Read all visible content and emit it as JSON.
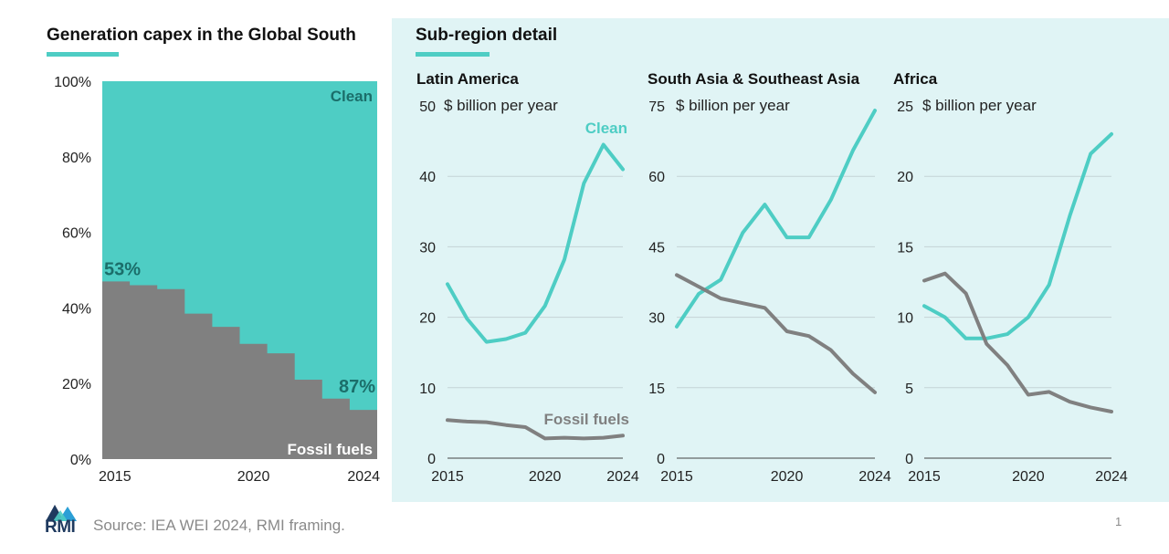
{
  "colors": {
    "clean": "#4ecdc4",
    "fossil": "#808080",
    "panel_bg": "#e0f4f5",
    "accent": "#4ecdc4"
  },
  "left_title": "Generation capex in the Global South",
  "right_title": "Sub-region detail",
  "footer": {
    "source": "Source: IEA WEI 2024, RMI framing.",
    "page": "1",
    "logo_text": "RMI"
  },
  "chart_data": [
    {
      "type": "area",
      "title": "Generation capex in the Global South",
      "x_ticks": [
        "2015",
        "2020",
        "2024"
      ],
      "y_ticks": [
        "0%",
        "20%",
        "40%",
        "60%",
        "80%",
        "100%"
      ],
      "ylim": [
        0,
        100
      ],
      "categories": [
        2015,
        2016,
        2017,
        2018,
        2019,
        2020,
        2021,
        2022,
        2023,
        2024
      ],
      "series": [
        {
          "name": "Fossil fuels",
          "values": [
            47,
            46,
            45,
            38.5,
            35,
            30.5,
            28,
            21,
            16,
            13
          ]
        },
        {
          "name": "Clean",
          "values": [
            53,
            54,
            55,
            61.5,
            65,
            69.5,
            72,
            79,
            84,
            87
          ]
        }
      ],
      "annotations": [
        "53%",
        "87%"
      ]
    },
    {
      "type": "line",
      "title": "Latin America",
      "ylabel": "$ billion per year",
      "x_ticks": [
        "2015",
        "2020",
        "2024"
      ],
      "y_ticks": [
        "0",
        "10",
        "20",
        "30",
        "40",
        "50"
      ],
      "ylim": [
        0,
        50
      ],
      "x": [
        2015,
        2016,
        2017,
        2018,
        2019,
        2020,
        2021,
        2022,
        2023,
        2024
      ],
      "series": [
        {
          "name": "Clean",
          "values": [
            24.7,
            19.8,
            16.5,
            16.9,
            17.8,
            21.6,
            28.2,
            39,
            44.5,
            41
          ]
        },
        {
          "name": "Fossil fuels",
          "values": [
            5.4,
            5.2,
            5.1,
            4.7,
            4.4,
            2.8,
            2.9,
            2.8,
            2.9,
            3.2
          ]
        }
      ]
    },
    {
      "type": "line",
      "title": "South Asia & Southeast Asia",
      "ylabel": "$ billion per year",
      "x_ticks": [
        "2015",
        "2020",
        "2024"
      ],
      "y_ticks": [
        "0",
        "15",
        "30",
        "45",
        "60",
        "75"
      ],
      "ylim": [
        0,
        75
      ],
      "x": [
        2015,
        2016,
        2017,
        2018,
        2019,
        2020,
        2021,
        2022,
        2023,
        2024
      ],
      "series": [
        {
          "name": "Clean",
          "values": [
            28,
            35,
            38,
            48,
            54,
            47,
            47,
            55,
            65.5,
            74
          ]
        },
        {
          "name": "Fossil fuels",
          "values": [
            39,
            36.5,
            34,
            33,
            32,
            27,
            26,
            23,
            18,
            14
          ]
        }
      ]
    },
    {
      "type": "line",
      "title": "Africa",
      "ylabel": "$ billion per year",
      "x_ticks": [
        "2015",
        "2020",
        "2024"
      ],
      "y_ticks": [
        "0",
        "5",
        "10",
        "15",
        "20",
        "25"
      ],
      "ylim": [
        0,
        25
      ],
      "x": [
        2015,
        2016,
        2017,
        2018,
        2019,
        2020,
        2021,
        2022,
        2023,
        2024
      ],
      "series": [
        {
          "name": "Clean",
          "values": [
            10.8,
            10,
            8.5,
            8.5,
            8.8,
            10,
            12.3,
            17.2,
            21.6,
            23
          ]
        },
        {
          "name": "Fossil fuels",
          "values": [
            12.6,
            13.1,
            11.7,
            8.1,
            6.6,
            4.5,
            4.7,
            4,
            3.6,
            3.3
          ]
        }
      ]
    }
  ]
}
